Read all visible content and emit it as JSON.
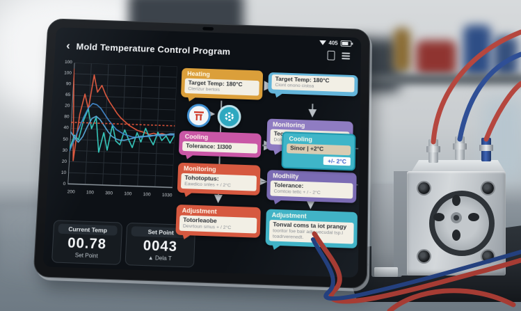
{
  "chart_data": {
    "type": "line",
    "title": "",
    "xlabel": "",
    "ylabel": "",
    "ylim": [
      0,
      105
    ],
    "grid": true,
    "legend": "none",
    "y_tick_labels": [
      "100",
      "100",
      "90",
      "65",
      "20",
      "80",
      "40",
      "50",
      "30",
      "20",
      "10",
      "0"
    ],
    "x_tick_labels": [
      "200",
      "100",
      "300",
      "100",
      "100",
      "1030"
    ],
    "series": [
      {
        "name": "measured-temp-red",
        "color": "#e2573b",
        "dashed": false,
        "values": [
          100,
          20,
          60,
          78,
          65,
          95,
          80,
          86,
          78,
          72,
          67,
          62,
          58,
          55,
          52,
          50,
          48,
          47,
          46,
          45,
          46,
          45,
          46,
          45,
          45,
          46
        ]
      },
      {
        "name": "sensor-noise-teal",
        "color": "#35c9bd",
        "dashed": false,
        "values": [
          30,
          42,
          38,
          55,
          65,
          48,
          58,
          28,
          45,
          30,
          52,
          38,
          35,
          48,
          40,
          33,
          46,
          38,
          50,
          42,
          36,
          47,
          40,
          44,
          38,
          45
        ]
      },
      {
        "name": "model-curve-a-blue",
        "color": "#3f85c9",
        "dashed": false,
        "values": [
          28,
          38,
          48,
          58,
          66,
          70,
          69,
          66,
          61,
          56,
          52,
          48,
          46,
          44,
          43,
          42,
          42,
          42,
          43,
          43,
          44,
          44,
          44,
          45,
          45,
          45
        ]
      },
      {
        "name": "model-curve-b-blue",
        "color": "#56a8d8",
        "dashed": false,
        "values": [
          45,
          40,
          36,
          41,
          50,
          57,
          59,
          56,
          51,
          46,
          42,
          40,
          39,
          39,
          40,
          41,
          42,
          43,
          43,
          44,
          44,
          45,
          45,
          45,
          46,
          46
        ]
      },
      {
        "name": "setpoint-dashed-red",
        "color": "#d45038",
        "dashed": true,
        "values": [
          53,
          53,
          53,
          53,
          53,
          53,
          53,
          53,
          53,
          53,
          53,
          53,
          53,
          53,
          53,
          53,
          53,
          53,
          53,
          53,
          53,
          53,
          53,
          53,
          53,
          53
        ]
      }
    ]
  },
  "tablet": {
    "status": {
      "time": "405"
    },
    "header": {
      "back_icon": "‹",
      "title": "Mold Temperature Control Program"
    },
    "stats": {
      "left": {
        "header": "Current Temp",
        "value": "00.78",
        "sub": "Set Point"
      },
      "right": {
        "header": "Set Point",
        "value": "0043",
        "sub": "▲ Dela T"
      }
    },
    "flowchart": {
      "left": [
        {
          "title": "Heating",
          "line1": "Target Temp: 180°C",
          "line2": "Cterizur bertois"
        },
        {
          "title": "Cooling",
          "line1": "Tolerance: 1I300",
          "line2": ""
        },
        {
          "title": "Monitoring",
          "line1": "Tohotoptus:",
          "line2": "Eawdico snles + / 2°C"
        },
        {
          "title": "Adjustment",
          "line1": "Totorleaobe",
          "line2": "Devrtoun smus + / 2°C"
        }
      ],
      "right": [
        {
          "title": "",
          "line1": "Target Temp: 180°C",
          "line2": "Ciont onono cistoa"
        },
        {
          "title": "Monitoring",
          "line1": "Teotum",
          "line2": "Dcnoro e"
        },
        {
          "title": "Modhiity",
          "line1": "Tolerance:",
          "line2": "Comtcio tettc + / - 2°C"
        },
        {
          "title": "Adjustment",
          "line1": "Tonval coms ta iot prangy",
          "line2": "tooritor foe bair adic vecudal tsp.l toadrverenedt."
        }
      ],
      "overlay": {
        "title": "Cooling",
        "line1": "Sinor | +2°C",
        "chip": "+/- 2°C"
      }
    }
  }
}
